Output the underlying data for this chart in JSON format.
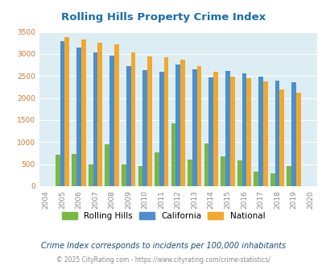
{
  "title": "Rolling Hills Property Crime Index",
  "years": [
    2004,
    2005,
    2006,
    2007,
    2008,
    2009,
    2010,
    2011,
    2012,
    2013,
    2014,
    2015,
    2016,
    2017,
    2018,
    2019,
    2020
  ],
  "rolling_hills": [
    0,
    720,
    730,
    500,
    960,
    500,
    450,
    760,
    1430,
    600,
    970,
    680,
    590,
    330,
    290,
    450,
    0
  ],
  "california": [
    0,
    3300,
    3150,
    3040,
    2960,
    2720,
    2630,
    2590,
    2760,
    2660,
    2460,
    2620,
    2560,
    2480,
    2400,
    2360,
    0
  ],
  "national": [
    0,
    3390,
    3330,
    3260,
    3210,
    3040,
    2950,
    2920,
    2870,
    2720,
    2590,
    2490,
    2450,
    2380,
    2200,
    2120,
    0
  ],
  "bar_colors": {
    "rolling_hills": "#7ab648",
    "california": "#4d8fcc",
    "national": "#f0a830"
  },
  "ylim": [
    0,
    3500
  ],
  "yticks": [
    0,
    500,
    1000,
    1500,
    2000,
    2500,
    3000,
    3500
  ],
  "bg_color": "#ddedf4",
  "legend_labels": [
    "Rolling Hills",
    "California",
    "National"
  ],
  "note": "Crime Index corresponds to incidents per 100,000 inhabitants",
  "copyright": "© 2025 CityRating.com - https://www.cityrating.com/crime-statistics/",
  "title_color": "#1a6ca8",
  "ytick_color": "#c87832",
  "xtick_color": "#888888",
  "note_color": "#1a4a7a",
  "copyright_color": "#888888",
  "copyright_link_color": "#4d8fcc",
  "bar_width": 0.28
}
